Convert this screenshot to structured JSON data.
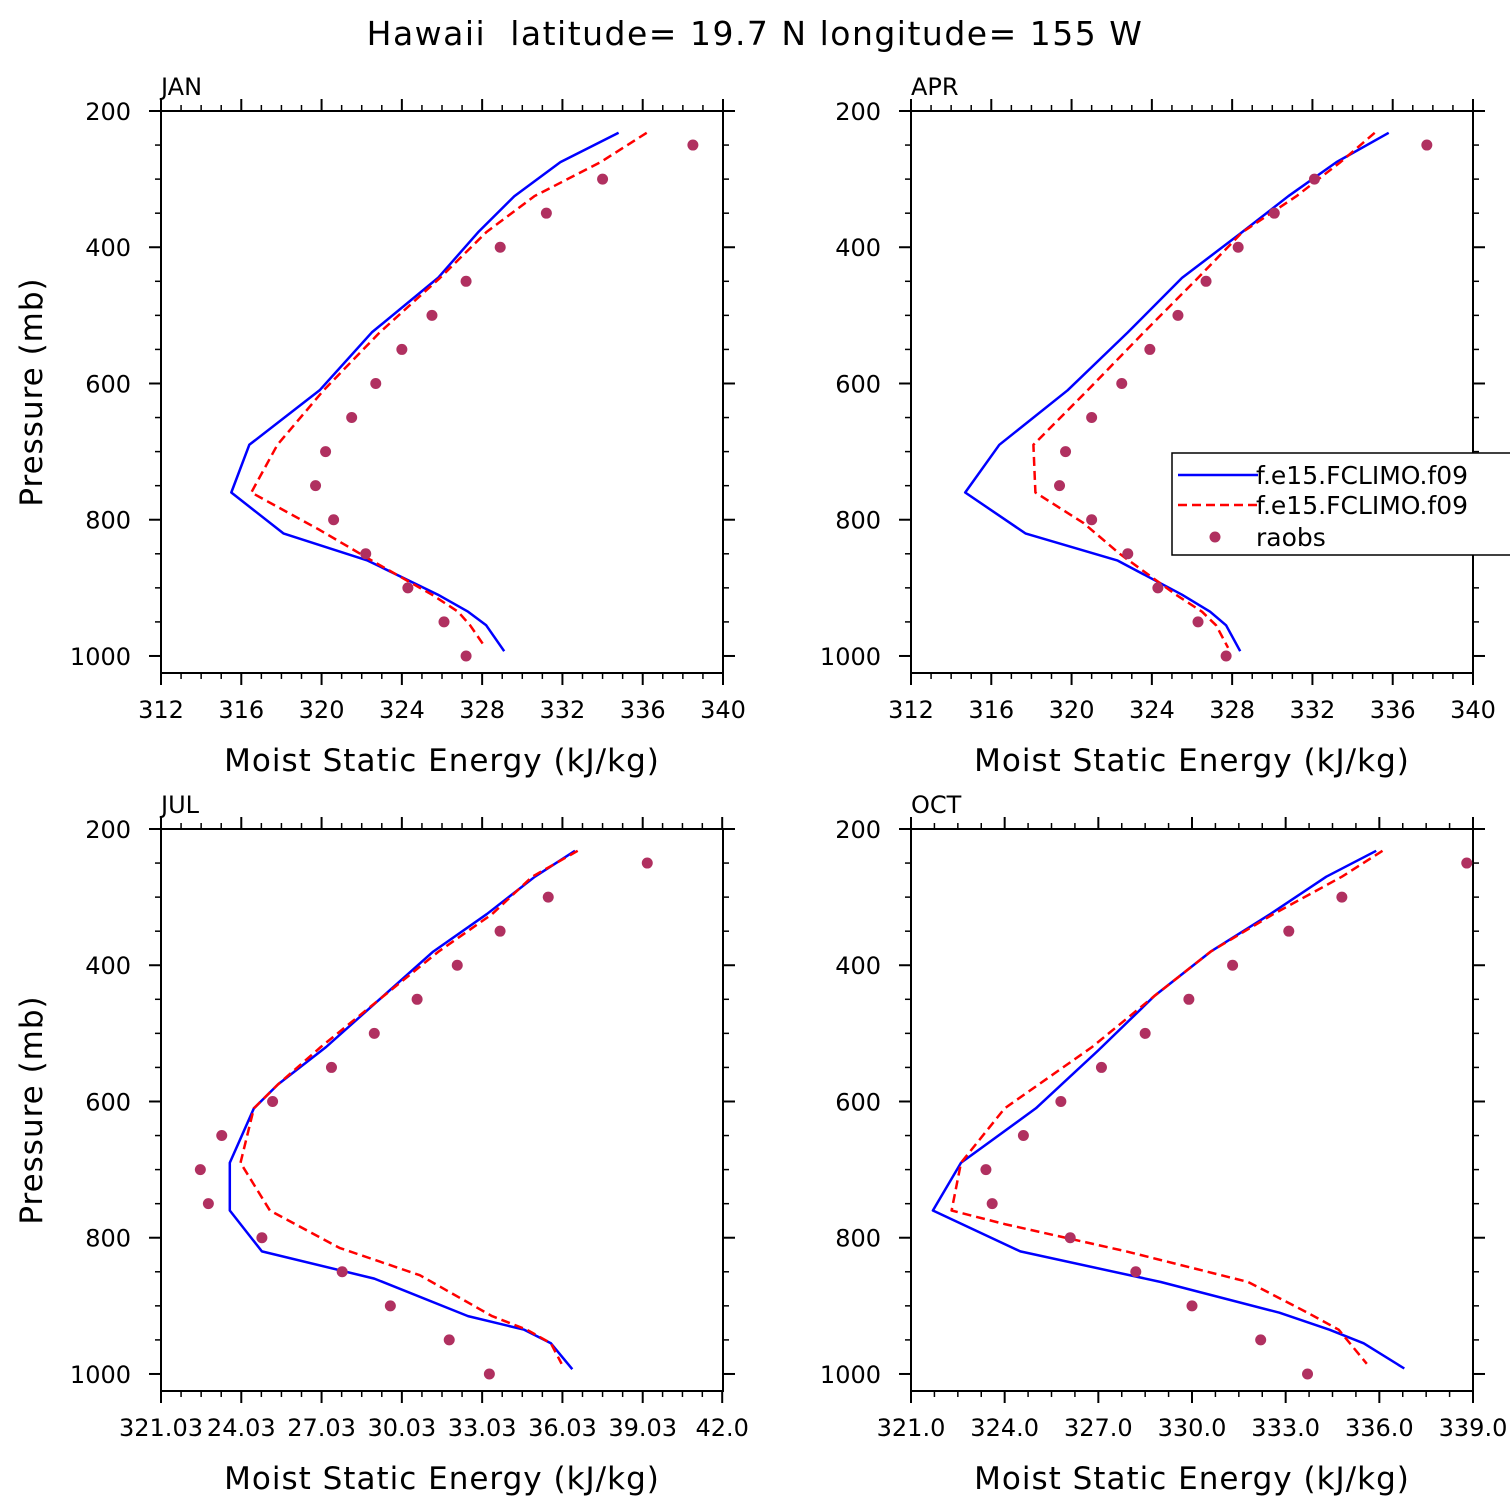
{
  "chart_data": {
    "type": "line",
    "title": "Hawaii  latitude= 19.7 N longitude= 155 W",
    "colors": {
      "model_1": "#0000ff",
      "model_2": "#ff0000",
      "raobs": "#b03060"
    },
    "legend": {
      "placement": "right",
      "entries": [
        "f.e15.FCLIMO.f09",
        "f.e15.FCLIMO.f09",
        "raobs"
      ]
    },
    "panels": [
      {
        "label": "JAN",
        "xlabel": "Moist Static Energy (kJ/kg)",
        "ylabel": "Pressure (mb)",
        "xlim": [
          312,
          340
        ],
        "ylim": [
          1025,
          200
        ],
        "xticks": [
          312,
          316,
          320,
          324,
          328,
          332,
          336,
          340
        ],
        "xtick_labels": [
          "312",
          "316",
          "320",
          "324",
          "328",
          "332",
          "336",
          "340"
        ],
        "yticks": [
          200,
          400,
          600,
          800,
          1000
        ],
        "ytick_labels": [
          "200",
          "400",
          "600",
          "800",
          "1000"
        ],
        "series": [
          {
            "style": "solid",
            "color": "#0000ff",
            "x": [
              334.8,
              331.9,
              329.6,
              327.8,
              325.8,
              322.5,
              319.9,
              316.4,
              315.5,
              318.1,
              322.3,
              325.8,
              327.3,
              328.2,
              329.1
            ],
            "y": [
              232,
              275,
              325,
              378,
              445,
              525,
              610,
              690,
              760,
              820,
              860,
              910,
              935,
              955,
              993
            ]
          },
          {
            "style": "dashed",
            "color": "#ff0000",
            "x": [
              336.2,
              333.9,
              330.6,
              328.2,
              325.9,
              322.9,
              320.1,
              317.8,
              316.5,
              319.9,
              322.5,
              325.5,
              326.8,
              327.4,
              328.1
            ],
            "y": [
              232,
              275,
              325,
              378,
              445,
              525,
              610,
              690,
              760,
              815,
              860,
              910,
              935,
              955,
              985
            ]
          }
        ],
        "points": {
          "x": [
            338.5,
            334.0,
            331.2,
            328.9,
            327.2,
            325.5,
            324.0,
            322.7,
            321.5,
            320.2,
            319.7,
            320.6,
            322.2,
            324.3,
            326.1,
            327.2
          ],
          "y": [
            250,
            300,
            350,
            400,
            450,
            500,
            550,
            600,
            650,
            700,
            750,
            800,
            850,
            900,
            950,
            1000
          ]
        }
      },
      {
        "label": "APR",
        "xlabel": "Moist Static Energy (kJ/kg)",
        "ylabel": "",
        "xlim": [
          312,
          340
        ],
        "ylim": [
          1025,
          200
        ],
        "xticks": [
          312,
          316,
          320,
          324,
          328,
          332,
          336,
          340
        ],
        "xtick_labels": [
          "312",
          "316",
          "320",
          "324",
          "328",
          "332",
          "336",
          "340"
        ],
        "yticks": [
          200,
          400,
          600,
          800,
          1000
        ],
        "ytick_labels": [
          "200",
          "400",
          "600",
          "800",
          "1000"
        ],
        "series": [
          {
            "style": "solid",
            "color": "#0000ff",
            "x": [
              335.8,
              333.2,
              330.8,
              328.4,
              325.5,
              322.8,
              319.8,
              316.4,
              314.7,
              317.7,
              322.3,
              325.5,
              326.9,
              327.7,
              328.4
            ],
            "y": [
              232,
              275,
              325,
              380,
              445,
              525,
              610,
              690,
              760,
              820,
              860,
              910,
              935,
              955,
              993
            ]
          },
          {
            "style": "dashed",
            "color": "#ff0000",
            "x": [
              335.1,
              333.4,
              331.2,
              328.5,
              326.3,
              323.6,
              320.8,
              318.1,
              318.2,
              320.6,
              322.4,
              325.2,
              326.5,
              327.2,
              327.8
            ],
            "y": [
              232,
              275,
              325,
              378,
              445,
              525,
              610,
              690,
              760,
              805,
              850,
              910,
              935,
              955,
              988
            ]
          }
        ],
        "points": {
          "x": [
            337.7,
            332.1,
            330.1,
            328.3,
            326.7,
            325.3,
            323.9,
            322.5,
            321.0,
            319.7,
            319.4,
            321.0,
            322.8,
            324.3,
            326.3,
            327.7
          ],
          "y": [
            250,
            300,
            350,
            400,
            450,
            500,
            550,
            600,
            650,
            700,
            750,
            800,
            850,
            900,
            950,
            1000
          ]
        }
      },
      {
        "label": "JUL",
        "xlabel": "Moist Static Energy (kJ/kg)",
        "ylabel": "Pressure (mb)",
        "xlim": [
          321.03,
          342.03
        ],
        "ylim": [
          1025,
          200
        ],
        "xticks": [
          321.03,
          324.03,
          327.03,
          330.03,
          333.03,
          336.03,
          339.03,
          342.0
        ],
        "xtick_labels": [
          "321.03",
          "24.03",
          "27.03",
          "30.03",
          "33.03",
          "36.03",
          "39.03",
          "42.0"
        ],
        "yticks": [
          200,
          400,
          600,
          800,
          1000
        ],
        "ytick_labels": [
          "200",
          "400",
          "600",
          "800",
          "1000"
        ],
        "series": [
          {
            "style": "solid",
            "color": "#0000ff",
            "x": [
              336.5,
              335.0,
              333.2,
              331.2,
              329.2,
              327.2,
              325.4,
              324.5,
              323.6,
              323.6,
              324.8,
              329.0,
              332.5,
              334.6,
              335.6,
              336.4
            ],
            "y": [
              232,
              270,
              325,
              380,
              450,
              520,
              575,
              610,
              690,
              760,
              820,
              860,
              915,
              935,
              955,
              993
            ]
          },
          {
            "style": "dashed",
            "color": "#ff0000",
            "x": [
              336.6,
              334.9,
              333.4,
              331.4,
              329.2,
              327.0,
              325.4,
              324.5,
              324.0,
              325.1,
              327.7,
              330.7,
              333.4,
              334.7,
              335.6,
              336.0
            ],
            "y": [
              232,
              270,
              325,
              380,
              450,
              520,
              575,
              610,
              690,
              760,
              815,
              855,
              915,
              935,
              955,
              985
            ]
          }
        ],
        "points": {
          "x": [
            339.2,
            335.5,
            333.7,
            332.1,
            330.6,
            329.0,
            327.4,
            325.2,
            323.3,
            322.5,
            322.8,
            324.8,
            327.8,
            329.6,
            331.8,
            333.3
          ],
          "y": [
            250,
            300,
            350,
            400,
            450,
            500,
            550,
            600,
            650,
            700,
            750,
            800,
            850,
            900,
            950,
            1000
          ]
        }
      },
      {
        "label": "OCT",
        "xlabel": "Moist Static Energy (kJ/kg)",
        "ylabel": "",
        "xlim": [
          321.0,
          339.0
        ],
        "ylim": [
          1025,
          200
        ],
        "xticks": [
          321,
          324,
          327,
          330,
          333,
          336,
          339
        ],
        "xtick_labels": [
          "321.0",
          "324.0",
          "327.0",
          "330.0",
          "333.0",
          "336.0",
          "339.0"
        ],
        "yticks": [
          200,
          400,
          600,
          800,
          1000
        ],
        "ytick_labels": [
          "200",
          "400",
          "600",
          "800",
          "1000"
        ],
        "series": [
          {
            "style": "solid",
            "color": "#0000ff",
            "x": [
              335.9,
              334.3,
              332.5,
              330.6,
              328.8,
              327.0,
              325.0,
              322.6,
              321.7,
              324.5,
              329.0,
              332.8,
              334.4,
              335.5,
              336.8
            ],
            "y": [
              232,
              270,
              325,
              380,
              445,
              525,
              610,
              690,
              760,
              820,
              865,
              910,
              935,
              955,
              992
            ]
          },
          {
            "style": "dashed",
            "color": "#ff0000",
            "x": [
              336.1,
              334.8,
              332.6,
              330.6,
              328.8,
              326.8,
              324.0,
              322.6,
              322.3,
              324.0,
              327.9,
              331.8,
              333.7,
              334.7,
              335.6
            ],
            "y": [
              232,
              270,
              325,
              380,
              445,
              520,
              610,
              690,
              760,
              780,
              820,
              865,
              910,
              935,
              985
            ]
          }
        ],
        "points": {
          "x": [
            338.8,
            334.8,
            333.1,
            331.3,
            329.9,
            328.5,
            327.1,
            325.8,
            324.6,
            323.4,
            323.6,
            326.1,
            328.2,
            330.0,
            332.2,
            333.7
          ],
          "y": [
            250,
            300,
            350,
            400,
            450,
            500,
            550,
            600,
            650,
            700,
            750,
            800,
            850,
            900,
            950,
            1000
          ]
        }
      }
    ]
  }
}
